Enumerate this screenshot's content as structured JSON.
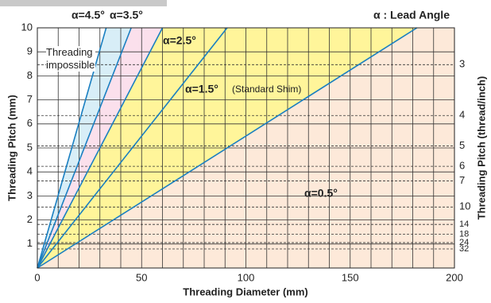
{
  "chart_data": {
    "type": "line",
    "xlabel": "Threading Diameter (mm)",
    "ylabel": "Threading Pitch (mm)",
    "y2label": "Threading Pitch (thread/inch)",
    "note": "α : Lead Angle",
    "annotation": "Threading impossible",
    "annotation_standard": "(Standard Shim)",
    "xlim": [
      0,
      200
    ],
    "xticks": [
      0,
      50,
      100,
      150,
      200
    ],
    "xminorticks": [
      10,
      20,
      30,
      40,
      60,
      70,
      80,
      90,
      110,
      120,
      130,
      140,
      160,
      170,
      180,
      190
    ],
    "ylim": [
      0,
      10
    ],
    "yticks": [
      1,
      2,
      3,
      4,
      5,
      6,
      7,
      8,
      9,
      10
    ],
    "y2scale": "reciprocal",
    "y2ticks": [
      3,
      4,
      5,
      6,
      7,
      10,
      14,
      18,
      24,
      32
    ],
    "grid": true,
    "series": [
      {
        "name": "α=4.5°",
        "color": "#1a7fc1",
        "fill": "#d8eef7",
        "x": [
          0,
          33
        ],
        "values": [
          0,
          10
        ]
      },
      {
        "name": "α=3.5°",
        "color": "#1a7fc1",
        "fill": "#fbe0ec",
        "x": [
          0,
          45
        ],
        "values": [
          0,
          10
        ]
      },
      {
        "name": "α=2.5°",
        "color": "#1a7fc1",
        "fill": "#fff59a",
        "x": [
          0,
          60
        ],
        "values": [
          0,
          10
        ]
      },
      {
        "name": "α=1.5°",
        "color": "#1a7fc1",
        "fill": "#fff59a",
        "x": [
          0,
          91
        ],
        "values": [
          0,
          10
        ]
      },
      {
        "name": "α=0.5°",
        "color": "#1a7fc1",
        "fill": "#fde9d9",
        "x": [
          0,
          182
        ],
        "values": [
          0,
          10
        ]
      }
    ]
  }
}
